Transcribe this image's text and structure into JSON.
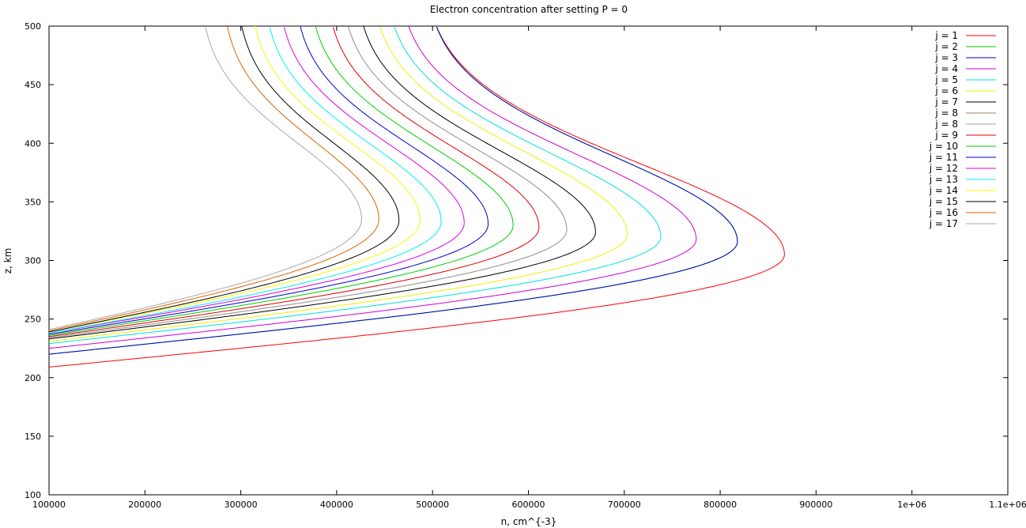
{
  "chart_data": {
    "type": "line",
    "title": "Electron concentration after setting P = 0",
    "xlabel": "n, cm^{-3}",
    "ylabel": "z, km",
    "xlim": [
      100000,
      1100000
    ],
    "ylim": [
      100,
      500
    ],
    "xticks": [
      100000,
      200000,
      300000,
      400000,
      500000,
      600000,
      700000,
      800000,
      900000,
      1000000,
      1100000
    ],
    "xtick_labels": [
      "100000",
      "200000",
      "300000",
      "400000",
      "500000",
      "600000",
      "700000",
      "800000",
      "900000",
      "1e+06",
      "1.1e+06"
    ],
    "yticks": [
      100,
      150,
      200,
      250,
      300,
      350,
      400,
      450,
      500
    ],
    "ytick_labels": [
      "100",
      "150",
      "200",
      "250",
      "300",
      "350",
      "400",
      "450",
      "500"
    ],
    "grid": false,
    "legend_position": "top-right",
    "series": [
      {
        "name": "j = 1",
        "color": "#ff0000",
        "peak_n": 867000,
        "peak_z": 305,
        "bottom_z": 209,
        "top_n": 504000
      },
      {
        "name": "j = 2",
        "color": "#00c000",
        "peak_n": 818000,
        "peak_z": 316,
        "bottom_z": 220,
        "top_n": 504000
      },
      {
        "name": "j = 3",
        "color": "#0000c0",
        "peak_n": 818000,
        "peak_z": 316,
        "bottom_z": 220,
        "top_n": 504000
      },
      {
        "name": "j = 4",
        "color": "#d000d0",
        "peak_n": 775000,
        "peak_z": 318,
        "bottom_z": 225,
        "top_n": 475000
      },
      {
        "name": "j = 5",
        "color": "#00e0e0",
        "peak_n": 738000,
        "peak_z": 320,
        "bottom_z": 229,
        "top_n": 460000
      },
      {
        "name": "j = 6",
        "color": "#f0f000",
        "peak_n": 703000,
        "peak_z": 322,
        "bottom_z": 231,
        "top_n": 445000
      },
      {
        "name": "j = 7",
        "color": "#000000",
        "peak_n": 670000,
        "peak_z": 324,
        "bottom_z": 233,
        "top_n": 428000
      },
      {
        "name": "j = 8",
        "color": "#a08060",
        "peak_n": 640000,
        "peak_z": 326,
        "bottom_z": 234,
        "top_n": 412000
      },
      {
        "name": "j = 8",
        "color": "#a0a0a0",
        "peak_n": 640000,
        "peak_z": 326,
        "bottom_z": 234,
        "top_n": 412000
      },
      {
        "name": "j = 9",
        "color": "#e00000",
        "peak_n": 611000,
        "peak_z": 328,
        "bottom_z": 235,
        "top_n": 396000
      },
      {
        "name": "j = 10",
        "color": "#00d000",
        "peak_n": 584000,
        "peak_z": 330,
        "bottom_z": 236,
        "top_n": 378000
      },
      {
        "name": "j = 11",
        "color": "#0000d0",
        "peak_n": 558000,
        "peak_z": 331,
        "bottom_z": 237,
        "top_n": 362000
      },
      {
        "name": "j = 12",
        "color": "#e000e0",
        "peak_n": 533000,
        "peak_z": 332,
        "bottom_z": 238,
        "top_n": 345000
      },
      {
        "name": "j = 13",
        "color": "#00f0f0",
        "peak_n": 509000,
        "peak_z": 333,
        "bottom_z": 238,
        "top_n": 330000
      },
      {
        "name": "j = 14",
        "color": "#f8f800",
        "peak_n": 487000,
        "peak_z": 334,
        "bottom_z": 239,
        "top_n": 315000
      },
      {
        "name": "j = 15",
        "color": "#000000",
        "peak_n": 465000,
        "peak_z": 334,
        "bottom_z": 239,
        "top_n": 301000
      },
      {
        "name": "j = 16",
        "color": "#e06000",
        "peak_n": 444000,
        "peak_z": 335,
        "bottom_z": 240,
        "top_n": 286000
      },
      {
        "name": "j = 17",
        "color": "#a8a8a8",
        "peak_n": 426000,
        "peak_z": 335,
        "bottom_z": 241,
        "top_n": 263000
      }
    ]
  }
}
